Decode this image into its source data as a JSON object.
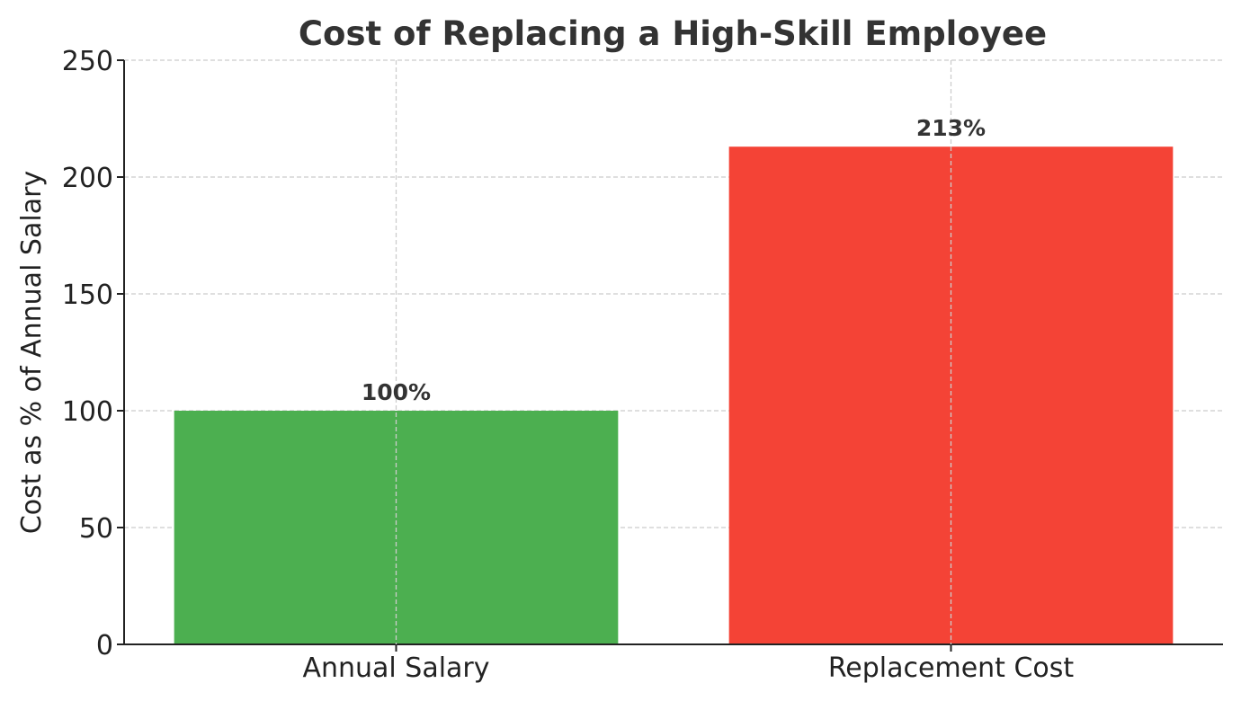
{
  "chart_data": {
    "type": "bar",
    "title": "Cost of Replacing a High-Skill Employee",
    "xlabel": "",
    "ylabel": "Cost as % of Annual Salary",
    "categories": [
      "Annual Salary",
      "Replacement Cost"
    ],
    "values": [
      100,
      213
    ],
    "data_labels": [
      "100%",
      "213%"
    ],
    "colors": [
      "#4caf50",
      "#f44336"
    ],
    "ylim": [
      0,
      250
    ],
    "yticks": [
      0,
      50,
      100,
      150,
      200,
      250
    ],
    "grid": true
  }
}
